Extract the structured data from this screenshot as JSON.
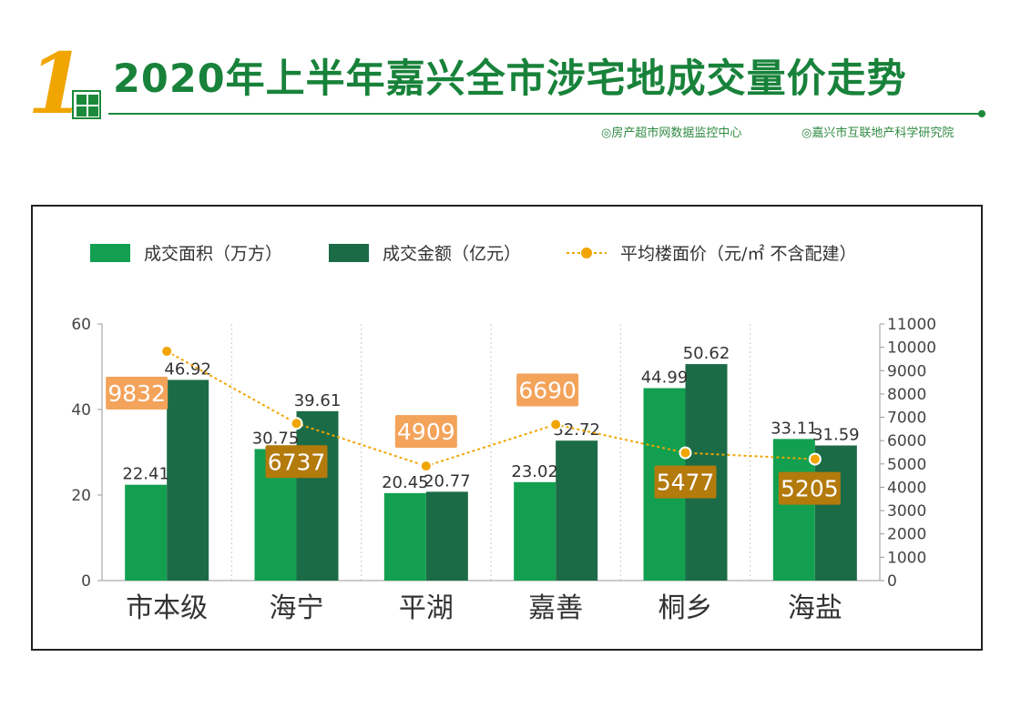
{
  "header": {
    "number": "1",
    "title": "2020年上半年嘉兴全市涉宅地成交量价走势",
    "source_left": "◎房产超市网数据监控中心",
    "source_right": "◎嘉兴市互联地产科学研究院"
  },
  "colors": {
    "area": "#12a050",
    "amount": "#1c6b47",
    "price_line": "#f0a500",
    "price_label_dark": "#b37a0c",
    "price_label_light": "#f4a35a",
    "title_green": "#18823a"
  },
  "chart_data": {
    "type": "bar",
    "categories": [
      "市本级",
      "海宁",
      "平湖",
      "嘉善",
      "桐乡",
      "海盐"
    ],
    "series": [
      {
        "name": "成交面积（万方）",
        "axis": "left",
        "values": [
          22.41,
          30.75,
          20.45,
          23.02,
          44.99,
          33.11
        ]
      },
      {
        "name": "成交金额（亿元）",
        "axis": "left",
        "values": [
          46.92,
          39.61,
          20.77,
          32.72,
          50.62,
          31.59
        ]
      },
      {
        "name": "平均楼面价（元/㎡ 不含配建）",
        "axis": "right",
        "type": "line",
        "values": [
          9832,
          6737,
          4909,
          6690,
          5477,
          5205
        ]
      }
    ],
    "y_left": {
      "range": [
        0,
        60
      ],
      "ticks": [
        "0",
        "20",
        "40",
        "60"
      ]
    },
    "y_right": {
      "range": [
        0,
        11000
      ],
      "ticks": [
        "0",
        "1000",
        "2000",
        "3000",
        "4000",
        "5000",
        "6000",
        "7000",
        "8000",
        "9000",
        "10000",
        "11000"
      ]
    },
    "legend_placement": "top",
    "grid": "vertical-dotted"
  }
}
